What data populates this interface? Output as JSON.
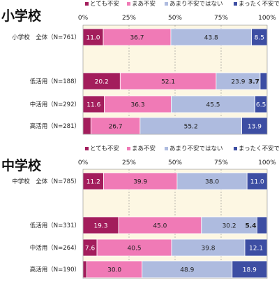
{
  "chart_data": [
    {
      "type": "bar",
      "orientation": "horizontal",
      "stacked": true,
      "title": "小学校",
      "legend": [
        "とても不安",
        "まあ不安",
        "あまり不安ではない",
        "まったく不安ではない"
      ],
      "legend_position": "top",
      "x_ticks": [
        "0%",
        "25%",
        "50%",
        "75%",
        "100%"
      ],
      "xlim": [
        0,
        100
      ],
      "grid": true,
      "categories": [
        "小学校　全体（N=761）",
        "",
        "低活用（N=188）",
        "中活用（N=292）",
        "高活用（N=281）"
      ],
      "series": [
        {
          "name": "とても不安",
          "values": [
            11.0,
            null,
            20.2,
            11.6,
            4.3
          ]
        },
        {
          "name": "まあ不安",
          "values": [
            36.7,
            null,
            52.1,
            36.3,
            26.7
          ]
        },
        {
          "name": "あまり不安ではない",
          "values": [
            43.8,
            null,
            23.9,
            45.5,
            55.2
          ]
        },
        {
          "name": "まったく不安ではない",
          "values": [
            8.5,
            null,
            3.7,
            6.5,
            13.9
          ]
        }
      ],
      "data_labels": [
        [
          "11.0",
          "",
          "20.2",
          "11.6",
          "4.3"
        ],
        [
          "36.7",
          "",
          "52.1",
          "36.3",
          "26.7"
        ],
        [
          "43.8",
          "",
          "23.9",
          "45.5",
          "55.2"
        ],
        [
          "8.5",
          "",
          "3.7",
          "6.5",
          "13.9"
        ]
      ]
    },
    {
      "type": "bar",
      "orientation": "horizontal",
      "stacked": true,
      "title": "中学校",
      "legend": [
        "とても不安",
        "まあ不安",
        "あまり不安ではない",
        "まったく不安ではない"
      ],
      "legend_position": "top",
      "x_ticks": [
        "0%",
        "25%",
        "50%",
        "75%",
        "100%"
      ],
      "xlim": [
        0,
        100
      ],
      "grid": true,
      "categories": [
        "中学校　全体（N=785）",
        "",
        "低活用（N=331）",
        "中活用（N=264）",
        "高活用（N=190）"
      ],
      "series": [
        {
          "name": "とても不安",
          "values": [
            11.2,
            null,
            19.3,
            7.6,
            2.1
          ]
        },
        {
          "name": "まあ不安",
          "values": [
            39.9,
            null,
            45.0,
            40.5,
            30.0
          ]
        },
        {
          "name": "あまり不安ではない",
          "values": [
            38.0,
            null,
            30.2,
            39.8,
            48.9
          ]
        },
        {
          "name": "まったく不安ではない",
          "values": [
            11.0,
            null,
            5.4,
            12.1,
            18.9
          ]
        }
      ],
      "data_labels": [
        [
          "11.2",
          "",
          "19.3",
          "7.6",
          "2.1"
        ],
        [
          "39.9",
          "",
          "45.0",
          "40.5",
          "30.0"
        ],
        [
          "38.0",
          "",
          "30.2",
          "39.8",
          "48.9"
        ],
        [
          "11.0",
          "",
          "5.4",
          "12.1",
          "18.9"
        ]
      ]
    }
  ],
  "colors": {
    "series": [
      "#a31d5c",
      "#f07ab6",
      "#aebbdf",
      "#3d4ea3"
    ],
    "plot_background": "#fdf7e3",
    "grid": "#8c8c8c"
  }
}
